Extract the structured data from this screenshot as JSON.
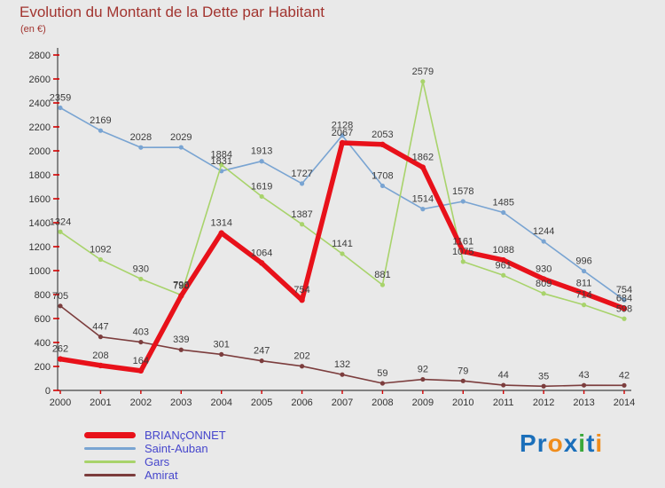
{
  "header": {
    "title": "Evolution du Montant de la Dette par Habitant",
    "subtitle": "(en €)"
  },
  "chart_data": {
    "type": "line",
    "x": [
      "2000",
      "2001",
      "2002",
      "2003",
      "2004",
      "2005",
      "2006",
      "2007",
      "2008",
      "2009",
      "2010",
      "2011",
      "2012",
      "2013",
      "2014"
    ],
    "series": [
      {
        "name": "BRIANçONNET",
        "color": "#e8111a",
        "stroke_width": 5.5,
        "values": [
          262,
          208,
          164,
          790,
          1314,
          1064,
          754,
          2067,
          2053,
          1862,
          1161,
          1088,
          930,
          811,
          684
        ]
      },
      {
        "name": "Saint-Auban",
        "color": "#79a4d2",
        "stroke_width": 1.6,
        "values": [
          2359,
          2169,
          2028,
          2029,
          1831,
          1913,
          1727,
          2128,
          1708,
          1514,
          1578,
          1485,
          1244,
          996,
          754
        ]
      },
      {
        "name": "Gars",
        "color": "#a8d36b",
        "stroke_width": 1.6,
        "values": [
          1324,
          1092,
          930,
          796,
          1884,
          1619,
          1387,
          1141,
          881,
          2579,
          1075,
          961,
          809,
          714,
          598
        ]
      },
      {
        "name": "Amirat",
        "color": "#7c3d3d",
        "stroke_width": 1.6,
        "values": [
          705,
          447,
          403,
          339,
          301,
          247,
          202,
          132,
          59,
          92,
          79,
          44,
          35,
          43,
          42
        ]
      }
    ],
    "ylim": [
      0,
      2800
    ],
    "ytick_step": 200,
    "grid": false,
    "legend_position": "bottom-left",
    "show_point_labels": true
  },
  "axes": {
    "tick_color": "#d40000",
    "text_color": "#333333",
    "line_color": "#444444",
    "point_label_color": "#3c3c3c"
  },
  "logo": {
    "text": "Proxiti",
    "letter_colors": [
      "#1b6fba",
      "#1b6fba",
      "#f08c1b",
      "#1b6fba",
      "#3aa83a",
      "#1b6fba",
      "#f08c1b"
    ]
  }
}
